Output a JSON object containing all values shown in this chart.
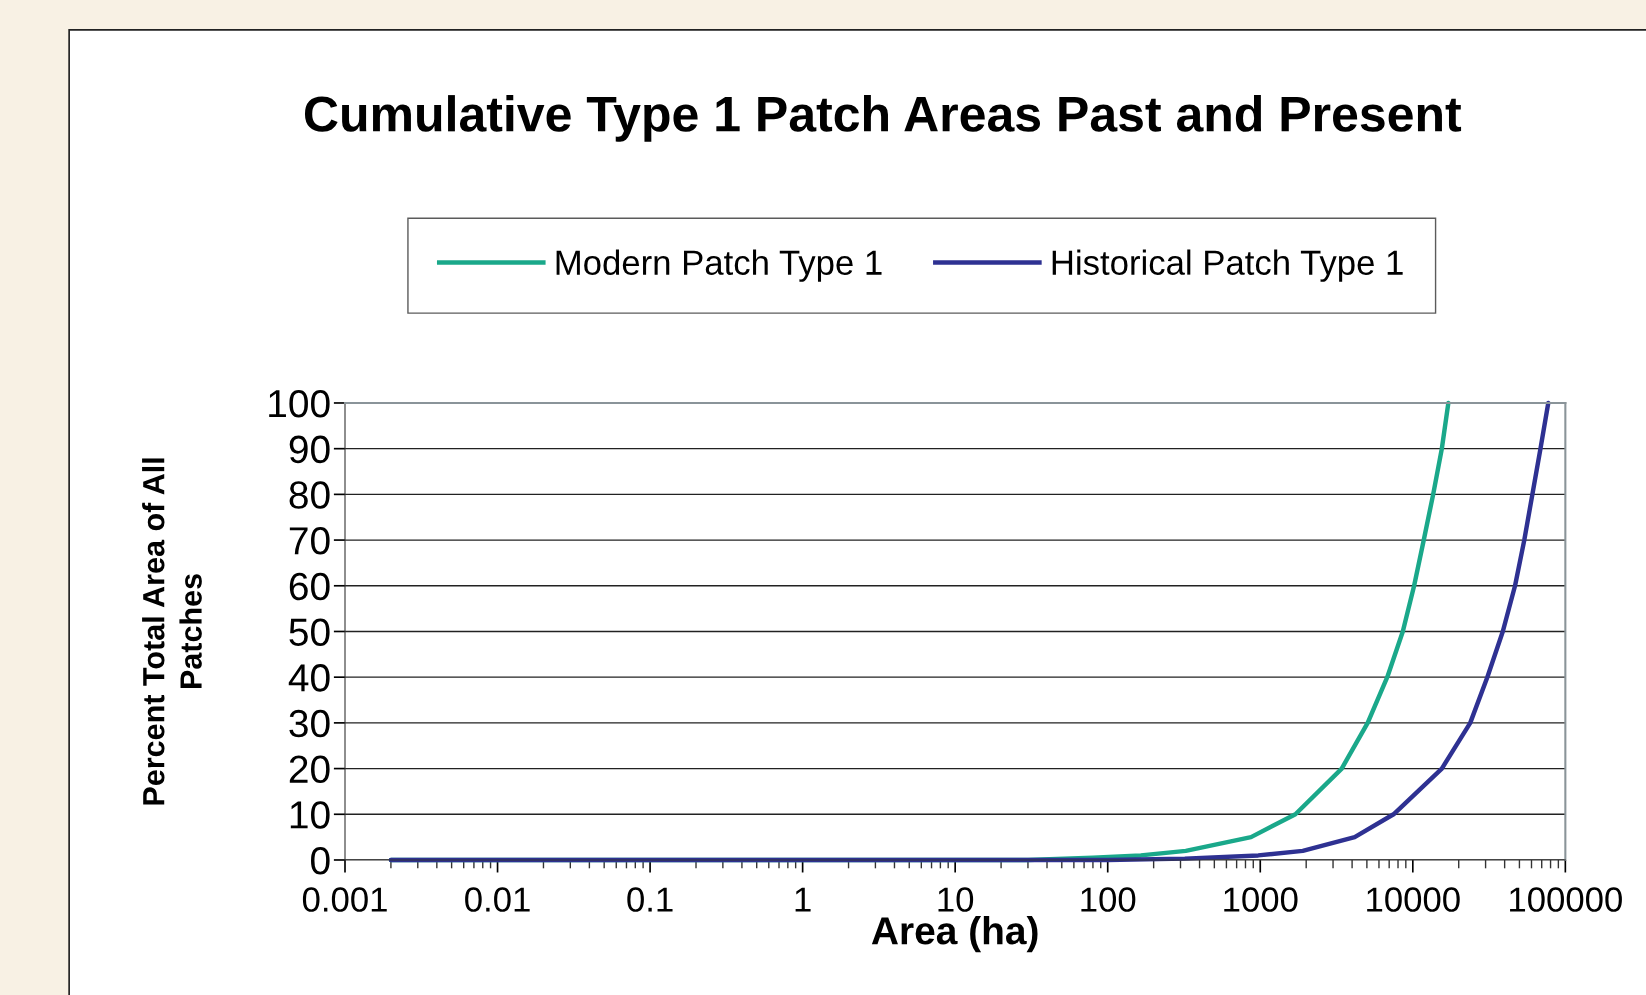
{
  "chart_data": {
    "type": "line",
    "title": "Cumulative Type 1 Patch Areas Past and Present",
    "xlabel": "Area (ha)",
    "ylabel": "Percent Total Area of All\nPatches",
    "log": "x",
    "grid": "y",
    "legend": "top",
    "marker": "none",
    "line_style": "solid",
    "xlim": [
      0.001,
      100000
    ],
    "xticks": [
      {
        "value": 0.001,
        "label": "0.001"
      },
      {
        "value": 0.01,
        "label": "0.01"
      },
      {
        "value": 0.1,
        "label": "0.1"
      },
      1,
      10,
      100,
      1000,
      10000,
      100000
    ],
    "ylim": [
      0,
      100
    ],
    "yticks": [
      0,
      10,
      20,
      30,
      40,
      50,
      60,
      70,
      80,
      90,
      100
    ],
    "series": [
      {
        "name": "Modern Patch Type 1",
        "color": "#1aa88a",
        "x": [
          0.002,
          1,
          30,
          80,
          165,
          325,
          870,
          1700,
          3420,
          5060,
          6800,
          8600,
          10200,
          11800,
          13600,
          15500,
          17100
        ],
        "values": [
          0,
          0,
          0,
          0.5,
          1,
          2,
          5,
          10,
          20,
          30,
          40,
          50,
          60,
          70,
          80,
          90,
          100
        ]
      },
      {
        "name": "Historical Patch Type 1",
        "color": "#2e3192",
        "x": [
          0.002,
          1,
          100,
          320,
          970,
          1900,
          4160,
          7480,
          15500,
          23800,
          30800,
          38900,
          46800,
          53800,
          60800,
          68700,
          77300
        ],
        "values": [
          0,
          0,
          0,
          0.3,
          1,
          2,
          5,
          10,
          20,
          30,
          40,
          50,
          60,
          70,
          80,
          90,
          100
        ]
      }
    ]
  }
}
